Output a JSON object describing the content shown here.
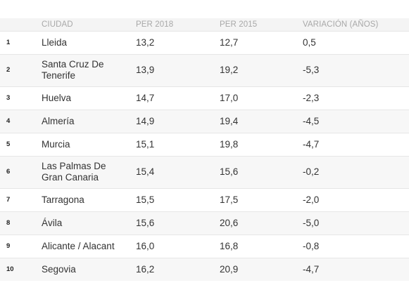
{
  "table": {
    "headers": {
      "rank": "",
      "city": "CIUDAD",
      "per2018": "PER 2018",
      "per2015": "PER 2015",
      "variation": "VARIACIÓN (AÑOS)"
    },
    "rows": [
      {
        "rank": "1",
        "city": "Lleida",
        "per2018": "13,2",
        "per2015": "12,7",
        "variation": "0,5"
      },
      {
        "rank": "2",
        "city": "Santa Cruz De Tenerife",
        "per2018": "13,9",
        "per2015": "19,2",
        "variation": "-5,3"
      },
      {
        "rank": "3",
        "city": "Huelva",
        "per2018": "14,7",
        "per2015": "17,0",
        "variation": "-2,3"
      },
      {
        "rank": "4",
        "city": "Almería",
        "per2018": "14,9",
        "per2015": "19,4",
        "variation": "-4,5"
      },
      {
        "rank": "5",
        "city": "Murcia",
        "per2018": "15,1",
        "per2015": "19,8",
        "variation": "-4,7"
      },
      {
        "rank": "6",
        "city": "Las Palmas De Gran Canaria",
        "per2018": "15,4",
        "per2015": "15,6",
        "variation": "-0,2"
      },
      {
        "rank": "7",
        "city": "Tarragona",
        "per2018": "15,5",
        "per2015": "17,5",
        "variation": "-2,0"
      },
      {
        "rank": "8",
        "city": "Ávila",
        "per2018": "15,6",
        "per2015": "20,6",
        "variation": "-5,0"
      },
      {
        "rank": "9",
        "city": "Alicante / Alacant",
        "per2018": "16,0",
        "per2015": "16,8",
        "variation": "-0,8"
      },
      {
        "rank": "10",
        "city": "Segovia",
        "per2018": "16,2",
        "per2015": "20,9",
        "variation": "-4,7"
      }
    ]
  },
  "colors": {
    "header_bg": "#f4f4f4",
    "header_text": "#a8a8a8",
    "zebra_bg": "#f7f7f7",
    "body_text": "#333333",
    "row_border": "#e6e6e6"
  }
}
